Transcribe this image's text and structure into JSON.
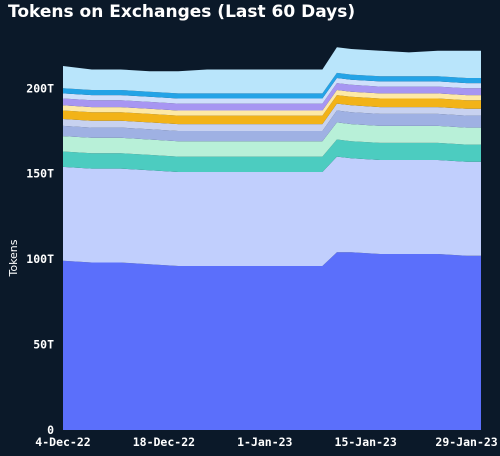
{
  "chart_data": {
    "type": "area",
    "title": "Tokens on Exchanges (Last 60 Days)",
    "xlabel": "",
    "ylabel": "Tokens",
    "ylim": [
      0,
      230
    ],
    "y_ticks": [
      0,
      50,
      100,
      150,
      200
    ],
    "y_tick_labels": [
      "0",
      "50T",
      "100T",
      "150T",
      "200T"
    ],
    "x_tick_labels": [
      "4-Dec-22",
      "18-Dec-22",
      "1-Jan-23",
      "15-Jan-23",
      "29-Jan-23"
    ],
    "x_tick_positions": [
      0,
      14,
      28,
      42,
      56
    ],
    "stacked": true,
    "grid": false,
    "x": [
      0,
      4,
      8,
      12,
      16,
      20,
      24,
      28,
      32,
      36,
      38,
      40,
      44,
      48,
      52,
      56,
      58
    ],
    "series": [
      {
        "color": "#5b6ffb",
        "values": [
          99,
          98,
          98,
          97,
          96,
          96,
          96,
          96,
          96,
          96,
          104,
          104,
          103,
          103,
          103,
          102,
          102
        ]
      },
      {
        "color": "#c1cffd",
        "values": [
          55,
          55,
          55,
          55,
          55,
          55,
          55,
          55,
          55,
          55,
          56,
          55,
          55,
          55,
          55,
          55,
          55
        ]
      },
      {
        "color": "#4cccc0",
        "values": [
          9,
          9,
          9,
          9,
          9,
          9,
          9,
          9,
          9,
          9,
          10,
          10,
          10,
          10,
          10,
          10,
          10
        ]
      },
      {
        "color": "#b8f0d8",
        "values": [
          9,
          9,
          9,
          9,
          9,
          9,
          9,
          9,
          9,
          9,
          10,
          10,
          10,
          10,
          10,
          10,
          10
        ]
      },
      {
        "color": "#9fb1e3",
        "values": [
          6,
          6,
          6,
          6,
          6,
          6,
          6,
          6,
          6,
          6,
          7,
          7,
          7,
          7,
          7,
          7,
          7
        ]
      },
      {
        "color": "#c8d2f0",
        "values": [
          4,
          4,
          4,
          4,
          4,
          4,
          4,
          4,
          4,
          4,
          4,
          4,
          4,
          4,
          4,
          4,
          4
        ]
      },
      {
        "color": "#f2b318",
        "values": [
          5,
          5,
          5,
          5,
          5,
          5,
          5,
          5,
          5,
          5,
          5,
          5,
          5,
          5,
          5,
          5,
          5
        ]
      },
      {
        "color": "#fde9a6",
        "values": [
          3,
          3,
          3,
          3,
          3,
          3,
          3,
          3,
          3,
          3,
          3,
          3,
          3,
          3,
          3,
          3,
          3
        ]
      },
      {
        "color": "#a796f2",
        "values": [
          4,
          4,
          4,
          4,
          4,
          4,
          4,
          4,
          4,
          4,
          4,
          4,
          4,
          4,
          4,
          4,
          4
        ]
      },
      {
        "color": "#cfe0fb",
        "values": [
          3,
          3,
          3,
          3,
          3,
          3,
          3,
          3,
          3,
          3,
          3,
          3,
          3,
          3,
          3,
          3,
          3
        ]
      },
      {
        "color": "#24a3e6",
        "values": [
          3,
          3,
          3,
          3,
          3,
          3,
          3,
          3,
          3,
          3,
          3,
          3,
          3,
          3,
          3,
          3,
          3
        ]
      },
      {
        "color": "#b9e5fb",
        "values": [
          13,
          12,
          12,
          12,
          13,
          14,
          14,
          14,
          14,
          14,
          15,
          15,
          15,
          14,
          15,
          16,
          16
        ]
      }
    ]
  }
}
